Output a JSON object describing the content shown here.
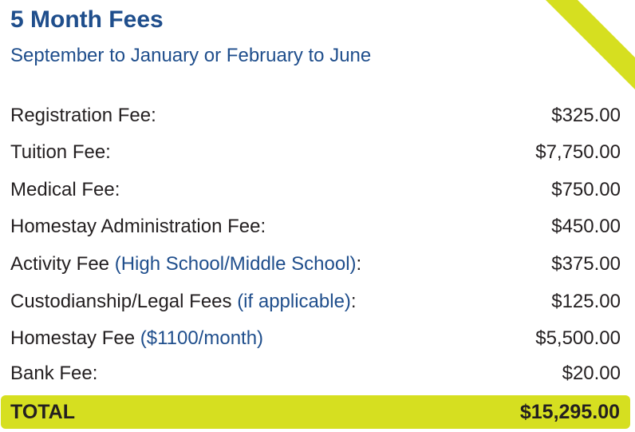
{
  "header": {
    "title": "5 Month Fees",
    "subtitle": "September to January or February to June"
  },
  "fees": [
    {
      "label": "Registration Fee:",
      "note": "",
      "suffix": "",
      "amount": "$325.00"
    },
    {
      "label": "Tuition Fee:",
      "note": "",
      "suffix": "",
      "amount": "$7,750.00"
    },
    {
      "label": "Medical Fee:",
      "note": "",
      "suffix": "",
      "amount": "$750.00"
    },
    {
      "label": "Homestay Administration Fee:",
      "note": "",
      "suffix": "",
      "amount": "$450.00"
    },
    {
      "label": "Activity Fee ",
      "note": "(High School/Middle School)",
      "suffix": ":",
      "amount": "$375.00"
    },
    {
      "label": "Custodianship/Legal Fees ",
      "note": "(if applicable)",
      "suffix": ":",
      "amount": "$125.00"
    },
    {
      "label": "Homestay Fee ",
      "note": "($1100/month)",
      "suffix": "",
      "amount": "$5,500.00"
    },
    {
      "label": "Bank Fee:",
      "note": "",
      "suffix": "",
      "amount": "$20.00"
    }
  ],
  "total": {
    "label": "TOTAL",
    "amount": "$15,295.00"
  },
  "colors": {
    "accent": "#d6df20",
    "heading": "#1f4e8c",
    "text": "#231f20"
  }
}
